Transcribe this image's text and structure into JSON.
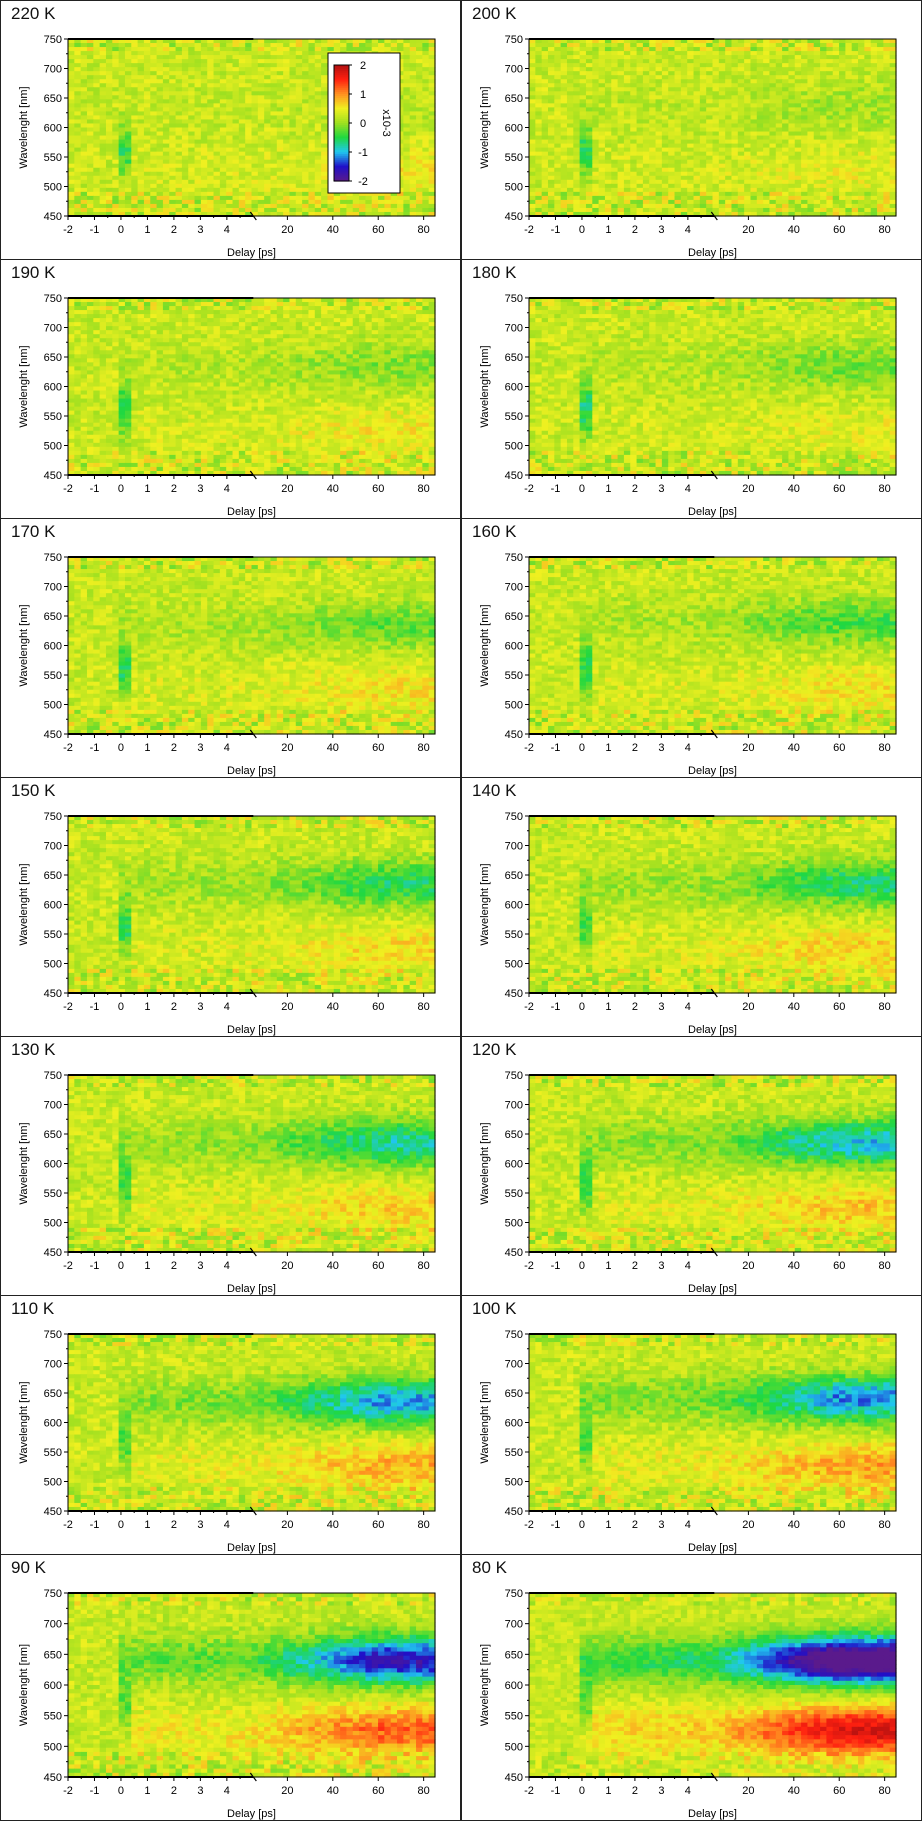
{
  "colors": {
    "background": "#ffffff",
    "frame": "#000000",
    "colormap": [
      "#5a1a8c",
      "#2010c8",
      "#20c8f0",
      "#20d840",
      "#a0e020",
      "#f0f020",
      "#ff9020",
      "#ff2010",
      "#b01010"
    ]
  },
  "colorbar": {
    "ticks": [
      "2",
      "1",
      "0",
      "-1",
      "-2"
    ],
    "label": "x10-3",
    "range": [
      -2,
      2
    ]
  },
  "chart_data": [
    {
      "type": "heatmap",
      "title": "220 K",
      "xlabel": "Delay [ps]",
      "ylabel": "Wavelenght [nm]",
      "x_ticks": [
        "-2",
        "-1",
        "0",
        "1",
        "2",
        "3",
        "4",
        "20",
        "40",
        "60",
        "80"
      ],
      "y_ticks": [
        "750",
        "700",
        "650",
        "600",
        "550",
        "500",
        "450"
      ],
      "ylim": [
        450,
        750
      ],
      "xlim_linear": [
        -2,
        5
      ],
      "xlim_log_section": [
        5,
        85
      ],
      "features": {
        "band_center_nm": 635,
        "band_amp": 0.05,
        "bleach_amp": 0.45,
        "pos_amp": 0.2,
        "noise": 0.25
      },
      "colorbar_shown": true
    },
    {
      "type": "heatmap",
      "title": "200 K",
      "xlabel": "Delay [ps]",
      "ylabel": "Wavelenght [nm]",
      "x_ticks": [
        "-2",
        "-1",
        "0",
        "1",
        "2",
        "3",
        "4",
        "20",
        "40",
        "60",
        "80"
      ],
      "y_ticks": [
        "750",
        "700",
        "650",
        "600",
        "550",
        "500",
        "450"
      ],
      "ylim": [
        450,
        750
      ],
      "xlim_linear": [
        -2,
        5
      ],
      "xlim_log_section": [
        5,
        85
      ],
      "features": {
        "band_center_nm": 635,
        "band_amp": 0.15,
        "bleach_amp": 0.45,
        "pos_amp": 0.15,
        "noise": 0.25
      }
    },
    {
      "type": "heatmap",
      "title": "190 K",
      "xlabel": "Delay [ps]",
      "ylabel": "Wavelenght [nm]",
      "x_ticks": [
        "-2",
        "-1",
        "0",
        "1",
        "2",
        "3",
        "4",
        "20",
        "40",
        "60",
        "80"
      ],
      "y_ticks": [
        "750",
        "700",
        "650",
        "600",
        "550",
        "500",
        "450"
      ],
      "ylim": [
        450,
        750
      ],
      "xlim_linear": [
        -2,
        5
      ],
      "xlim_log_section": [
        5,
        85
      ],
      "features": {
        "band_center_nm": 635,
        "band_amp": 0.25,
        "bleach_amp": 0.5,
        "pos_amp": 0.22,
        "noise": 0.25
      }
    },
    {
      "type": "heatmap",
      "title": "180 K",
      "xlabel": "Delay [ps]",
      "ylabel": "Wavelenght [nm]",
      "x_ticks": [
        "-2",
        "-1",
        "0",
        "1",
        "2",
        "3",
        "4",
        "20",
        "40",
        "60",
        "80"
      ],
      "y_ticks": [
        "750",
        "700",
        "650",
        "600",
        "550",
        "500",
        "450"
      ],
      "ylim": [
        450,
        750
      ],
      "xlim_linear": [
        -2,
        5
      ],
      "xlim_log_section": [
        5,
        85
      ],
      "features": {
        "band_center_nm": 635,
        "band_amp": 0.3,
        "bleach_amp": 0.55,
        "pos_amp": 0.15,
        "noise": 0.25
      }
    },
    {
      "type": "heatmap",
      "title": "170 K",
      "xlabel": "Delay [ps]",
      "ylabel": "Wavelenght [nm]",
      "x_ticks": [
        "-2",
        "-1",
        "0",
        "1",
        "2",
        "3",
        "4",
        "20",
        "40",
        "60",
        "80"
      ],
      "y_ticks": [
        "750",
        "700",
        "650",
        "600",
        "550",
        "500",
        "450"
      ],
      "ylim": [
        450,
        750
      ],
      "xlim_linear": [
        -2,
        5
      ],
      "xlim_log_section": [
        5,
        85
      ],
      "features": {
        "band_center_nm": 635,
        "band_amp": 0.35,
        "bleach_amp": 0.5,
        "pos_amp": 0.25,
        "noise": 0.25
      }
    },
    {
      "type": "heatmap",
      "title": "160 K",
      "xlabel": "Delay [ps]",
      "ylabel": "Wavelenght [nm]",
      "x_ticks": [
        "-2",
        "-1",
        "0",
        "1",
        "2",
        "3",
        "4",
        "20",
        "40",
        "60",
        "80"
      ],
      "y_ticks": [
        "750",
        "700",
        "650",
        "600",
        "550",
        "500",
        "450"
      ],
      "ylim": [
        450,
        750
      ],
      "xlim_linear": [
        -2,
        5
      ],
      "xlim_log_section": [
        5,
        85
      ],
      "features": {
        "band_center_nm": 640,
        "band_amp": 0.42,
        "bleach_amp": 0.5,
        "pos_amp": 0.25,
        "noise": 0.25
      }
    },
    {
      "type": "heatmap",
      "title": "150 K",
      "xlabel": "Delay [ps]",
      "ylabel": "Wavelenght [nm]",
      "x_ticks": [
        "-2",
        "-1",
        "0",
        "1",
        "2",
        "3",
        "4",
        "20",
        "40",
        "60",
        "80"
      ],
      "y_ticks": [
        "750",
        "700",
        "650",
        "600",
        "550",
        "500",
        "450"
      ],
      "ylim": [
        450,
        750
      ],
      "xlim_linear": [
        -2,
        5
      ],
      "xlim_log_section": [
        5,
        85
      ],
      "features": {
        "band_center_nm": 635,
        "band_amp": 0.55,
        "bleach_amp": 0.5,
        "pos_amp": 0.3,
        "noise": 0.25
      }
    },
    {
      "type": "heatmap",
      "title": "140 K",
      "xlabel": "Delay [ps]",
      "ylabel": "Wavelenght [nm]",
      "x_ticks": [
        "-2",
        "-1",
        "0",
        "1",
        "2",
        "3",
        "4",
        "20",
        "40",
        "60",
        "80"
      ],
      "y_ticks": [
        "750",
        "700",
        "650",
        "600",
        "550",
        "500",
        "450"
      ],
      "ylim": [
        450,
        750
      ],
      "xlim_linear": [
        -2,
        5
      ],
      "xlim_log_section": [
        5,
        85
      ],
      "features": {
        "band_center_nm": 635,
        "band_amp": 0.6,
        "bleach_amp": 0.45,
        "pos_amp": 0.35,
        "noise": 0.25
      }
    },
    {
      "type": "heatmap",
      "title": "130 K",
      "xlabel": "Delay [ps]",
      "ylabel": "Wavelenght [nm]",
      "x_ticks": [
        "-2",
        "-1",
        "0",
        "1",
        "2",
        "3",
        "4",
        "20",
        "40",
        "60",
        "80"
      ],
      "y_ticks": [
        "750",
        "700",
        "650",
        "600",
        "550",
        "500",
        "450"
      ],
      "ylim": [
        450,
        750
      ],
      "xlim_linear": [
        -2,
        5
      ],
      "xlim_log_section": [
        5,
        85
      ],
      "features": {
        "band_center_nm": 635,
        "band_amp": 0.7,
        "bleach_amp": 0.45,
        "pos_amp": 0.35,
        "noise": 0.25
      }
    },
    {
      "type": "heatmap",
      "title": "120 K",
      "xlabel": "Delay [ps]",
      "ylabel": "Wavelenght [nm]",
      "x_ticks": [
        "-2",
        "-1",
        "0",
        "1",
        "2",
        "3",
        "4",
        "20",
        "40",
        "60",
        "80"
      ],
      "y_ticks": [
        "750",
        "700",
        "650",
        "600",
        "550",
        "500",
        "450"
      ],
      "ylim": [
        450,
        750
      ],
      "xlim_linear": [
        -2,
        5
      ],
      "xlim_log_section": [
        5,
        85
      ],
      "features": {
        "band_center_nm": 635,
        "band_amp": 0.85,
        "bleach_amp": 0.45,
        "pos_amp": 0.4,
        "noise": 0.25
      }
    },
    {
      "type": "heatmap",
      "title": "110 K",
      "xlabel": "Delay [ps]",
      "ylabel": "Wavelenght [nm]",
      "x_ticks": [
        "-2",
        "-1",
        "0",
        "1",
        "2",
        "3",
        "4",
        "20",
        "40",
        "60",
        "80"
      ],
      "y_ticks": [
        "750",
        "700",
        "650",
        "600",
        "550",
        "500",
        "450"
      ],
      "ylim": [
        450,
        750
      ],
      "xlim_linear": [
        -2,
        5
      ],
      "xlim_log_section": [
        5,
        85
      ],
      "features": {
        "band_center_nm": 635,
        "band_amp": 0.95,
        "bleach_amp": 0.4,
        "pos_amp": 0.5,
        "noise": 0.25
      }
    },
    {
      "type": "heatmap",
      "title": "100 K",
      "xlabel": "Delay [ps]",
      "ylabel": "Wavelenght [nm]",
      "x_ticks": [
        "-2",
        "-1",
        "0",
        "1",
        "2",
        "3",
        "4",
        "20",
        "40",
        "60",
        "80"
      ],
      "y_ticks": [
        "750",
        "700",
        "650",
        "600",
        "550",
        "500",
        "450"
      ],
      "ylim": [
        450,
        750
      ],
      "xlim_linear": [
        -2,
        5
      ],
      "xlim_log_section": [
        5,
        85
      ],
      "features": {
        "band_center_nm": 640,
        "band_amp": 1.0,
        "bleach_amp": 0.4,
        "pos_amp": 0.55,
        "noise": 0.25
      }
    },
    {
      "type": "heatmap",
      "title": "90 K",
      "xlabel": "Delay [ps]",
      "ylabel": "Wavelenght [nm]",
      "x_ticks": [
        "-2",
        "-1",
        "0",
        "1",
        "2",
        "3",
        "4",
        "20",
        "40",
        "60",
        "80"
      ],
      "y_ticks": [
        "750",
        "700",
        "650",
        "600",
        "550",
        "500",
        "450"
      ],
      "ylim": [
        450,
        750
      ],
      "xlim_linear": [
        -2,
        5
      ],
      "xlim_log_section": [
        5,
        85
      ],
      "features": {
        "band_center_nm": 640,
        "band_amp": 1.3,
        "bleach_amp": 0.4,
        "pos_amp": 0.8,
        "noise": 0.25
      }
    },
    {
      "type": "heatmap",
      "title": "80 K",
      "xlabel": "Delay [ps]",
      "ylabel": "Wavelenght [nm]",
      "x_ticks": [
        "-2",
        "-1",
        "0",
        "1",
        "2",
        "3",
        "4",
        "20",
        "40",
        "60",
        "80"
      ],
      "y_ticks": [
        "750",
        "700",
        "650",
        "600",
        "550",
        "500",
        "450"
      ],
      "ylim": [
        450,
        750
      ],
      "xlim_linear": [
        -2,
        5
      ],
      "xlim_log_section": [
        5,
        85
      ],
      "features": {
        "band_center_nm": 640,
        "band_amp": 1.9,
        "bleach_amp": 0.4,
        "pos_amp": 1.25,
        "noise": 0.2
      }
    }
  ]
}
